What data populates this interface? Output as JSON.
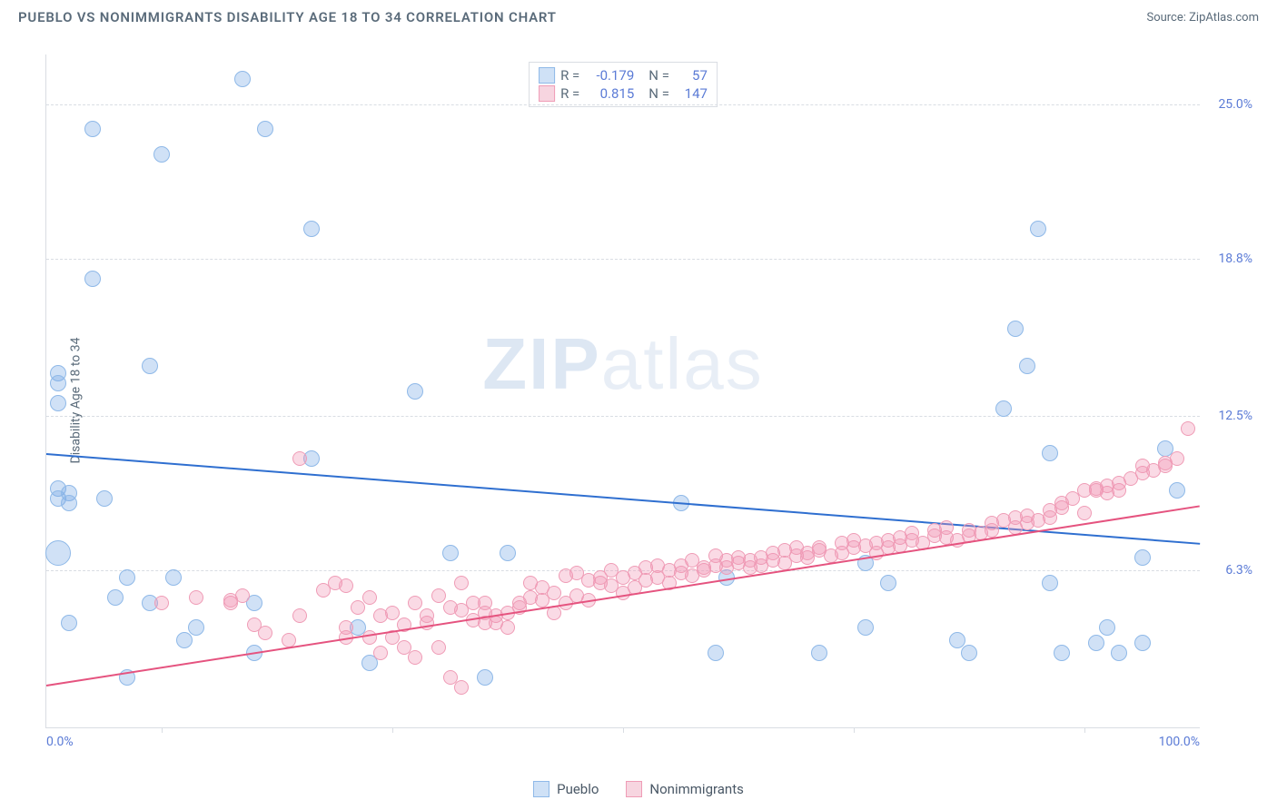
{
  "header": {
    "title": "PUEBLO VS NONIMMIGRANTS DISABILITY AGE 18 TO 34 CORRELATION CHART",
    "source": "Source: ZipAtlas.com"
  },
  "watermark": {
    "bold": "ZIP",
    "rest": "atlas"
  },
  "chart": {
    "type": "scatter",
    "y_axis_title": "Disability Age 18 to 34",
    "background_color": "#ffffff",
    "grid_color": "#d9dde3",
    "xlim": [
      0,
      100
    ],
    "ylim": [
      0,
      27
    ],
    "y_ticks": [
      {
        "v": 6.3,
        "label": "6.3%"
      },
      {
        "v": 12.5,
        "label": "12.5%"
      },
      {
        "v": 18.8,
        "label": "18.8%"
      },
      {
        "v": 25.0,
        "label": "25.0%"
      }
    ],
    "x_ticks_positions": [
      10,
      30,
      50,
      70,
      90
    ],
    "x_labels": [
      {
        "v": 0,
        "label": "0.0%"
      },
      {
        "v": 100,
        "label": "100.0%"
      }
    ],
    "series": [
      {
        "name": "Pueblo",
        "fill": "rgba(120,170,230,0.35)",
        "stroke": "#8fb9e8",
        "swatch_fill": "#cfe1f6",
        "swatch_border": "#8fb9e8",
        "R": "-0.179",
        "N": "57",
        "trend": {
          "color": "#2f6fd0",
          "y_at_x0": 11.0,
          "y_at_x100": 7.4
        },
        "marker_r": 9,
        "points": [
          [
            1,
            9.6
          ],
          [
            1,
            9.2
          ],
          [
            1,
            14.2
          ],
          [
            1,
            13.8
          ],
          [
            1,
            13.0
          ],
          [
            1,
            7.0,
            14
          ],
          [
            2,
            4.2
          ],
          [
            2,
            9.4
          ],
          [
            2,
            9.0
          ],
          [
            4,
            24.0
          ],
          [
            4,
            18.0
          ],
          [
            5,
            9.2
          ],
          [
            6,
            5.2
          ],
          [
            7,
            6.0
          ],
          [
            7,
            2.0
          ],
          [
            9,
            5.0
          ],
          [
            9,
            14.5
          ],
          [
            10,
            23.0
          ],
          [
            11,
            6.0
          ],
          [
            12,
            3.5
          ],
          [
            13,
            4.0
          ],
          [
            17,
            26.0
          ],
          [
            18,
            5.0
          ],
          [
            18,
            3.0
          ],
          [
            19,
            24.0
          ],
          [
            23,
            20.0
          ],
          [
            23,
            10.8
          ],
          [
            27,
            4.0
          ],
          [
            28,
            2.6
          ],
          [
            32,
            13.5
          ],
          [
            35,
            7.0
          ],
          [
            38,
            2.0
          ],
          [
            40,
            7.0
          ],
          [
            55,
            9.0
          ],
          [
            58,
            3.0
          ],
          [
            59,
            6.0
          ],
          [
            67,
            3.0
          ],
          [
            71,
            4.0
          ],
          [
            71,
            6.6
          ],
          [
            73,
            5.8
          ],
          [
            79,
            3.5
          ],
          [
            80,
            3.0
          ],
          [
            83,
            12.8
          ],
          [
            84,
            16.0
          ],
          [
            85,
            14.5
          ],
          [
            86,
            20.0
          ],
          [
            87,
            11.0
          ],
          [
            87,
            5.8
          ],
          [
            88,
            3.0
          ],
          [
            91,
            3.4
          ],
          [
            92,
            4.0
          ],
          [
            93,
            3.0
          ],
          [
            95,
            6.8
          ],
          [
            95,
            3.4
          ],
          [
            97,
            11.2
          ],
          [
            98,
            9.5
          ]
        ]
      },
      {
        "name": "Nonimmigrants",
        "fill": "rgba(240,150,180,0.35)",
        "stroke": "#ef9cb6",
        "swatch_fill": "#f7d5e0",
        "swatch_border": "#ef9cb6",
        "R": "0.815",
        "N": "147",
        "trend": {
          "color": "#e5537f",
          "y_at_x0": 1.7,
          "y_at_x100": 8.9
        },
        "marker_r": 8,
        "points": [
          [
            10,
            5.0
          ],
          [
            13,
            5.2
          ],
          [
            16,
            5.0
          ],
          [
            16,
            5.1
          ],
          [
            17,
            5.3
          ],
          [
            18,
            4.1
          ],
          [
            19,
            3.8
          ],
          [
            21,
            3.5
          ],
          [
            22,
            4.5
          ],
          [
            22,
            10.8
          ],
          [
            24,
            5.5
          ],
          [
            25,
            5.8
          ],
          [
            26,
            4.0
          ],
          [
            26,
            3.6
          ],
          [
            26,
            5.7
          ],
          [
            27,
            4.8
          ],
          [
            28,
            3.6
          ],
          [
            28,
            5.2
          ],
          [
            29,
            3.0
          ],
          [
            29,
            4.5
          ],
          [
            30,
            3.6
          ],
          [
            30,
            4.6
          ],
          [
            31,
            3.2
          ],
          [
            31,
            4.1
          ],
          [
            32,
            5.0
          ],
          [
            32,
            2.8
          ],
          [
            33,
            4.2
          ],
          [
            33,
            4.5
          ],
          [
            34,
            3.2
          ],
          [
            34,
            5.3
          ],
          [
            35,
            2.0
          ],
          [
            35,
            4.8
          ],
          [
            36,
            1.6
          ],
          [
            36,
            5.8
          ],
          [
            36,
            4.7
          ],
          [
            37,
            5.0
          ],
          [
            37,
            4.3
          ],
          [
            38,
            4.2
          ],
          [
            38,
            4.6
          ],
          [
            38,
            5.0
          ],
          [
            39,
            4.5
          ],
          [
            39,
            4.2
          ],
          [
            40,
            4.6
          ],
          [
            40,
            4.0
          ],
          [
            41,
            5.0
          ],
          [
            41,
            4.8
          ],
          [
            42,
            5.2
          ],
          [
            42,
            5.8
          ],
          [
            43,
            5.1
          ],
          [
            43,
            5.6
          ],
          [
            44,
            4.6
          ],
          [
            44,
            5.4
          ],
          [
            45,
            5.0
          ],
          [
            45,
            6.1
          ],
          [
            46,
            5.3
          ],
          [
            46,
            6.2
          ],
          [
            47,
            5.1
          ],
          [
            47,
            5.9
          ],
          [
            48,
            5.8
          ],
          [
            48,
            6.0
          ],
          [
            49,
            5.7
          ],
          [
            49,
            6.3
          ],
          [
            50,
            5.4
          ],
          [
            50,
            6.0
          ],
          [
            51,
            5.6
          ],
          [
            51,
            6.2
          ],
          [
            52,
            5.9
          ],
          [
            52,
            6.4
          ],
          [
            53,
            6.0
          ],
          [
            53,
            6.5
          ],
          [
            54,
            5.8
          ],
          [
            54,
            6.3
          ],
          [
            55,
            6.2
          ],
          [
            55,
            6.5
          ],
          [
            56,
            6.1
          ],
          [
            56,
            6.7
          ],
          [
            57,
            6.3
          ],
          [
            57,
            6.4
          ],
          [
            58,
            6.5
          ],
          [
            58,
            6.9
          ],
          [
            59,
            6.4
          ],
          [
            59,
            6.7
          ],
          [
            60,
            6.6
          ],
          [
            60,
            6.8
          ],
          [
            61,
            6.4
          ],
          [
            61,
            6.7
          ],
          [
            62,
            6.8
          ],
          [
            62,
            6.5
          ],
          [
            63,
            6.7
          ],
          [
            63,
            7.0
          ],
          [
            64,
            6.6
          ],
          [
            64,
            7.1
          ],
          [
            65,
            6.9
          ],
          [
            65,
            7.2
          ],
          [
            66,
            6.8
          ],
          [
            66,
            7.0
          ],
          [
            67,
            7.2
          ],
          [
            67,
            7.1
          ],
          [
            68,
            6.9
          ],
          [
            69,
            7.0
          ],
          [
            69,
            7.4
          ],
          [
            70,
            7.2
          ],
          [
            70,
            7.5
          ],
          [
            71,
            7.3
          ],
          [
            72,
            7.0
          ],
          [
            72,
            7.4
          ],
          [
            73,
            7.5
          ],
          [
            73,
            7.2
          ],
          [
            74,
            7.6
          ],
          [
            74,
            7.3
          ],
          [
            75,
            7.5
          ],
          [
            75,
            7.8
          ],
          [
            76,
            7.4
          ],
          [
            77,
            7.7
          ],
          [
            77,
            7.9
          ],
          [
            78,
            7.6
          ],
          [
            78,
            8.0
          ],
          [
            79,
            7.5
          ],
          [
            80,
            7.9
          ],
          [
            80,
            7.7
          ],
          [
            81,
            7.8
          ],
          [
            82,
            8.2
          ],
          [
            82,
            7.9
          ],
          [
            83,
            8.3
          ],
          [
            84,
            8.0
          ],
          [
            84,
            8.4
          ],
          [
            85,
            8.5
          ],
          [
            85,
            8.2
          ],
          [
            86,
            8.3
          ],
          [
            87,
            8.7
          ],
          [
            87,
            8.4
          ],
          [
            88,
            8.8
          ],
          [
            88,
            9.0
          ],
          [
            89,
            9.2
          ],
          [
            90,
            8.6
          ],
          [
            90,
            9.5
          ],
          [
            91,
            9.5
          ],
          [
            91,
            9.6
          ],
          [
            92,
            9.4
          ],
          [
            92,
            9.7
          ],
          [
            93,
            9.5
          ],
          [
            93,
            9.8
          ],
          [
            94,
            10.0
          ],
          [
            95,
            10.2
          ],
          [
            95,
            10.5
          ],
          [
            96,
            10.3
          ],
          [
            97,
            10.5
          ],
          [
            97,
            10.6
          ],
          [
            98,
            10.8
          ],
          [
            99,
            12.0
          ]
        ]
      }
    ]
  }
}
